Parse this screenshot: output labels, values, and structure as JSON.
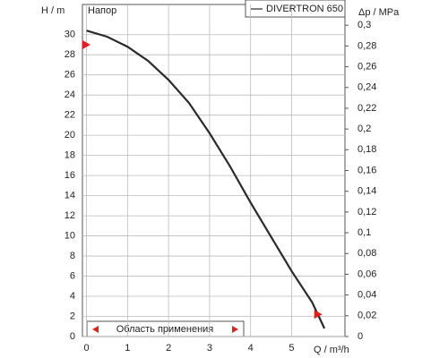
{
  "chart_data": {
    "type": "line",
    "title": "Напор",
    "y_label": "H / m",
    "y2_label": "Δp / MPa",
    "x_label": "Q / m³/h",
    "annotation": "Область применения",
    "x": [
      0,
      0.5,
      1,
      1.5,
      2,
      2.5,
      3,
      3.5,
      4,
      4.5,
      5,
      5.5,
      5.8
    ],
    "series": [
      {
        "name": "DIVERTRON 650",
        "color": "#2a2a2a",
        "values": [
          30.4,
          29.8,
          28.8,
          27.4,
          25.5,
          23.2,
          20.2,
          16.9,
          13.3,
          9.9,
          6.5,
          3.4,
          0.8
        ]
      }
    ],
    "markers": {
      "color": "#e02020",
      "x": [
        -0.1,
        5.55
      ],
      "y": [
        29,
        2.2
      ]
    },
    "xlim": [
      -0.1,
      6.3
    ],
    "ylim": [
      0,
      33
    ],
    "y2lim": [
      0,
      0.32
    ],
    "xticks": [
      0,
      1,
      2,
      3,
      4,
      5
    ],
    "yticks": [
      0,
      2,
      4,
      6,
      8,
      10,
      12,
      14,
      16,
      18,
      20,
      22,
      24,
      26,
      28,
      30
    ],
    "y2ticks": [
      0,
      {
        "value": 0.02,
        "label": "0,02"
      },
      {
        "value": 0.04,
        "label": "0,04"
      },
      {
        "value": 0.06,
        "label": "0,06"
      },
      {
        "value": 0.08,
        "label": "0,08"
      },
      {
        "value": 0.1,
        "label": "0,1"
      },
      {
        "value": 0.12,
        "label": "0,12"
      },
      {
        "value": 0.14,
        "label": "0,14"
      },
      {
        "value": 0.16,
        "label": "0,16"
      },
      {
        "value": 0.18,
        "label": "0,18"
      },
      {
        "value": 0.2,
        "label": "0,2"
      },
      {
        "value": 0.22,
        "label": "0,22"
      },
      {
        "value": 0.24,
        "label": "0,24"
      },
      {
        "value": 0.26,
        "label": "0,26"
      },
      {
        "value": 0.28,
        "label": "0,28"
      },
      {
        "value": 0.3,
        "label": "0,3"
      }
    ],
    "grid": true
  }
}
